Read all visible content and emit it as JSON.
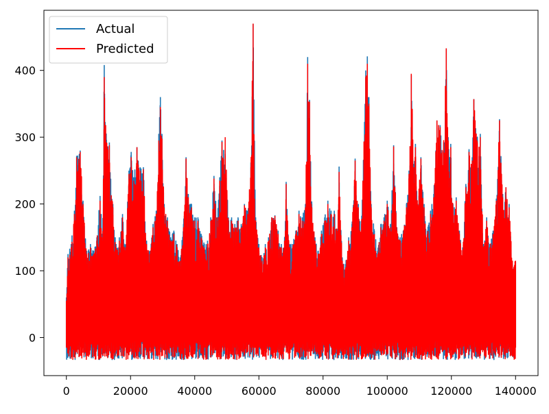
{
  "chart_data": {
    "type": "line",
    "title": "",
    "xlabel": "",
    "ylabel": "",
    "xlim": [
      -7000,
      147000
    ],
    "ylim": [
      -57,
      490
    ],
    "xticks": [
      0,
      20000,
      40000,
      60000,
      80000,
      100000,
      120000,
      140000
    ],
    "xtick_labels": [
      "0",
      "20000",
      "40000",
      "60000",
      "80000",
      "100000",
      "120000",
      "140000"
    ],
    "yticks": [
      0,
      100,
      200,
      300,
      400
    ],
    "ytick_labels": [
      "0",
      "100",
      "200",
      "300",
      "400"
    ],
    "grid": false,
    "legend_position": "top-left",
    "series": [
      {
        "name": "Actual",
        "color": "#1f77b4",
        "peaks": [
          [
            0,
            60
          ],
          [
            500,
            125
          ],
          [
            1500,
            140
          ],
          [
            2500,
            190
          ],
          [
            3200,
            272
          ],
          [
            4300,
            280
          ],
          [
            5200,
            205
          ],
          [
            6300,
            130
          ],
          [
            7500,
            140
          ],
          [
            8500,
            130
          ],
          [
            9500,
            150
          ],
          [
            10500,
            212
          ],
          [
            11300,
            150
          ],
          [
            11800,
            408
          ],
          [
            12500,
            296
          ],
          [
            13400,
            292
          ],
          [
            14500,
            200
          ],
          [
            15500,
            140
          ],
          [
            16500,
            150
          ],
          [
            17500,
            185
          ],
          [
            18500,
            140
          ],
          [
            19500,
            250
          ],
          [
            20200,
            278
          ],
          [
            21000,
            240
          ],
          [
            22000,
            285
          ],
          [
            23000,
            255
          ],
          [
            24000,
            255
          ],
          [
            25000,
            145
          ],
          [
            26000,
            130
          ],
          [
            27000,
            170
          ],
          [
            28000,
            190
          ],
          [
            28800,
            305
          ],
          [
            29300,
            360
          ],
          [
            29800,
            305
          ],
          [
            30500,
            200
          ],
          [
            31500,
            180
          ],
          [
            32500,
            150
          ],
          [
            33500,
            160
          ],
          [
            34500,
            140
          ],
          [
            35500,
            120
          ],
          [
            36500,
            170
          ],
          [
            37300,
            270
          ],
          [
            38000,
            215
          ],
          [
            39000,
            200
          ],
          [
            40000,
            180
          ],
          [
            41000,
            180
          ],
          [
            42000,
            155
          ],
          [
            43000,
            140
          ],
          [
            44000,
            145
          ],
          [
            45000,
            180
          ],
          [
            46000,
            242
          ],
          [
            47000,
            180
          ],
          [
            47800,
            240
          ],
          [
            48500,
            295
          ],
          [
            49500,
            275
          ],
          [
            50500,
            180
          ],
          [
            51500,
            180
          ],
          [
            52500,
            170
          ],
          [
            53500,
            180
          ],
          [
            54500,
            170
          ],
          [
            55500,
            200
          ],
          [
            56500,
            190
          ],
          [
            57500,
            262
          ],
          [
            58200,
            470
          ],
          [
            59000,
            180
          ],
          [
            60000,
            140
          ],
          [
            61000,
            120
          ],
          [
            62000,
            140
          ],
          [
            63000,
            150
          ],
          [
            64000,
            180
          ],
          [
            65000,
            183
          ],
          [
            66000,
            160
          ],
          [
            67000,
            140
          ],
          [
            68000,
            150
          ],
          [
            68500,
            233
          ],
          [
            69500,
            140
          ],
          [
            70500,
            140
          ],
          [
            71500,
            160
          ],
          [
            72500,
            190
          ],
          [
            73500,
            180
          ],
          [
            74500,
            200
          ],
          [
            75200,
            420
          ],
          [
            75800,
            355
          ],
          [
            76500,
            200
          ],
          [
            77500,
            150
          ],
          [
            78500,
            130
          ],
          [
            79500,
            160
          ],
          [
            80500,
            180
          ],
          [
            81500,
            205
          ],
          [
            82500,
            190
          ],
          [
            83500,
            190
          ],
          [
            84500,
            160
          ],
          [
            85000,
            256
          ],
          [
            86000,
            120
          ],
          [
            87000,
            110
          ],
          [
            88000,
            150
          ],
          [
            89000,
            170
          ],
          [
            90000,
            268
          ],
          [
            91000,
            200
          ],
          [
            92000,
            175
          ],
          [
            93300,
            400
          ],
          [
            93800,
            421
          ],
          [
            94300,
            360
          ],
          [
            95000,
            200
          ],
          [
            96000,
            160
          ],
          [
            97000,
            130
          ],
          [
            98000,
            170
          ],
          [
            99000,
            180
          ],
          [
            100000,
            205
          ],
          [
            101000,
            170
          ],
          [
            102000,
            288
          ],
          [
            103000,
            165
          ],
          [
            104000,
            150
          ],
          [
            105000,
            160
          ],
          [
            106000,
            200
          ],
          [
            106800,
            250
          ],
          [
            107500,
            393
          ],
          [
            108300,
            260
          ],
          [
            108800,
            290
          ],
          [
            109500,
            200
          ],
          [
            110500,
            270
          ],
          [
            111500,
            200
          ],
          [
            112500,
            160
          ],
          [
            113500,
            190
          ],
          [
            114500,
            215
          ],
          [
            115500,
            325
          ],
          [
            116500,
            318
          ],
          [
            117500,
            280
          ],
          [
            118400,
            433
          ],
          [
            119000,
            300
          ],
          [
            119800,
            290
          ],
          [
            120500,
            200
          ],
          [
            121500,
            210
          ],
          [
            122500,
            160
          ],
          [
            123500,
            135
          ],
          [
            124500,
            230
          ],
          [
            125500,
            282
          ],
          [
            126500,
            270
          ],
          [
            127000,
            357
          ],
          [
            128000,
            300
          ],
          [
            129000,
            305
          ],
          [
            130000,
            140
          ],
          [
            131000,
            180
          ],
          [
            132000,
            140
          ],
          [
            133000,
            160
          ],
          [
            134000,
            208
          ],
          [
            135000,
            327
          ],
          [
            136000,
            215
          ],
          [
            137000,
            225
          ],
          [
            138000,
            200
          ],
          [
            139000,
            110
          ],
          [
            140000,
            113
          ]
        ]
      },
      {
        "name": "Predicted",
        "color": "#ff0000",
        "peaks": [
          [
            0,
            55
          ],
          [
            500,
            120
          ],
          [
            1500,
            135
          ],
          [
            2500,
            185
          ],
          [
            3200,
            270
          ],
          [
            4300,
            278
          ],
          [
            5200,
            200
          ],
          [
            6300,
            125
          ],
          [
            7500,
            135
          ],
          [
            8500,
            125
          ],
          [
            9500,
            145
          ],
          [
            10500,
            205
          ],
          [
            11300,
            145
          ],
          [
            11800,
            390
          ],
          [
            12500,
            292
          ],
          [
            13400,
            288
          ],
          [
            14500,
            195
          ],
          [
            15500,
            135
          ],
          [
            16500,
            145
          ],
          [
            17500,
            180
          ],
          [
            18500,
            135
          ],
          [
            19500,
            245
          ],
          [
            20200,
            270
          ],
          [
            21000,
            235
          ],
          [
            22000,
            285
          ],
          [
            23000,
            250
          ],
          [
            24000,
            252
          ],
          [
            25000,
            140
          ],
          [
            26000,
            125
          ],
          [
            27000,
            165
          ],
          [
            28000,
            185
          ],
          [
            28800,
            295
          ],
          [
            29300,
            345
          ],
          [
            29800,
            298
          ],
          [
            30500,
            195
          ],
          [
            31500,
            175
          ],
          [
            32500,
            145
          ],
          [
            33500,
            155
          ],
          [
            34500,
            135
          ],
          [
            35500,
            115
          ],
          [
            36500,
            165
          ],
          [
            37300,
            268
          ],
          [
            38000,
            210
          ],
          [
            39000,
            195
          ],
          [
            40000,
            175
          ],
          [
            41000,
            175
          ],
          [
            42000,
            150
          ],
          [
            43000,
            135
          ],
          [
            44000,
            140
          ],
          [
            45000,
            175
          ],
          [
            46000,
            238
          ],
          [
            47000,
            175
          ],
          [
            47800,
            235
          ],
          [
            48500,
            293
          ],
          [
            49500,
            300
          ],
          [
            50500,
            175
          ],
          [
            51500,
            175
          ],
          [
            52500,
            165
          ],
          [
            53500,
            175
          ],
          [
            54500,
            165
          ],
          [
            55500,
            198
          ],
          [
            56500,
            185
          ],
          [
            57500,
            255
          ],
          [
            58200,
            470
          ],
          [
            59000,
            175
          ],
          [
            60000,
            135
          ],
          [
            61000,
            115
          ],
          [
            62000,
            135
          ],
          [
            63000,
            145
          ],
          [
            64000,
            180
          ],
          [
            65000,
            182
          ],
          [
            66000,
            155
          ],
          [
            67000,
            135
          ],
          [
            68000,
            145
          ],
          [
            68500,
            230
          ],
          [
            69500,
            135
          ],
          [
            70500,
            135
          ],
          [
            71500,
            155
          ],
          [
            72500,
            185
          ],
          [
            73500,
            175
          ],
          [
            74500,
            195
          ],
          [
            75200,
            410
          ],
          [
            75800,
            353
          ],
          [
            76500,
            195
          ],
          [
            77500,
            145
          ],
          [
            78500,
            125
          ],
          [
            79500,
            155
          ],
          [
            80500,
            175
          ],
          [
            81500,
            200
          ],
          [
            82500,
            185
          ],
          [
            83500,
            185
          ],
          [
            84500,
            155
          ],
          [
            85000,
            248
          ],
          [
            86000,
            115
          ],
          [
            87000,
            105
          ],
          [
            88000,
            145
          ],
          [
            89000,
            165
          ],
          [
            90000,
            265
          ],
          [
            91000,
            195
          ],
          [
            92000,
            170
          ],
          [
            93300,
            390
          ],
          [
            93800,
            410
          ],
          [
            94300,
            350
          ],
          [
            95000,
            195
          ],
          [
            96000,
            155
          ],
          [
            97000,
            125
          ],
          [
            98000,
            165
          ],
          [
            99000,
            175
          ],
          [
            100000,
            200
          ],
          [
            101000,
            165
          ],
          [
            102000,
            286
          ],
          [
            103000,
            160
          ],
          [
            104000,
            145
          ],
          [
            105000,
            155
          ],
          [
            106000,
            195
          ],
          [
            106800,
            245
          ],
          [
            107500,
            395
          ],
          [
            108300,
            255
          ],
          [
            108800,
            285
          ],
          [
            109500,
            195
          ],
          [
            110500,
            268
          ],
          [
            111500,
            195
          ],
          [
            112500,
            155
          ],
          [
            113500,
            185
          ],
          [
            114500,
            210
          ],
          [
            115500,
            325
          ],
          [
            116500,
            315
          ],
          [
            117500,
            278
          ],
          [
            118400,
            433
          ],
          [
            119000,
            295
          ],
          [
            119800,
            285
          ],
          [
            120500,
            195
          ],
          [
            121500,
            205
          ],
          [
            122500,
            155
          ],
          [
            123500,
            130
          ],
          [
            124500,
            225
          ],
          [
            125500,
            278
          ],
          [
            126500,
            265
          ],
          [
            127000,
            357
          ],
          [
            128000,
            295
          ],
          [
            129000,
            300
          ],
          [
            130000,
            135
          ],
          [
            131000,
            175
          ],
          [
            132000,
            135
          ],
          [
            133000,
            155
          ],
          [
            134000,
            205
          ],
          [
            135000,
            325
          ],
          [
            136000,
            210
          ],
          [
            137000,
            225
          ],
          [
            138000,
            195
          ],
          [
            139000,
            115
          ],
          [
            140000,
            115
          ]
        ]
      }
    ]
  }
}
